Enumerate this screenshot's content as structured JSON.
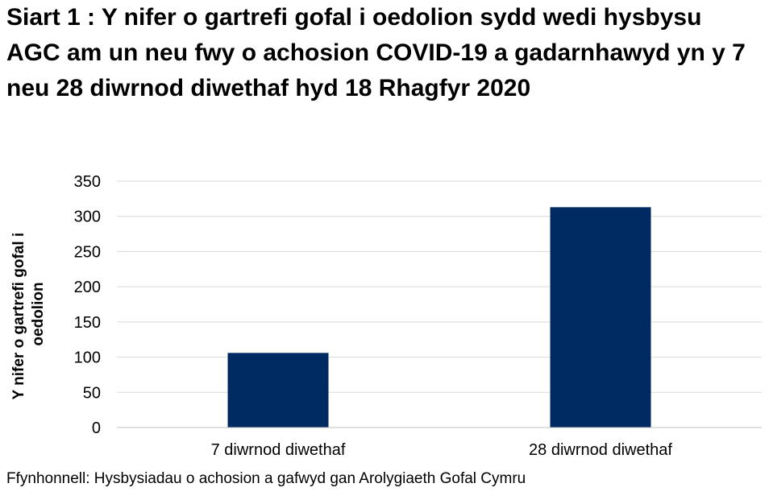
{
  "chart_data": {
    "type": "bar",
    "title": "Siart 1 : Y nifer o gartrefi gofal i oedolion sydd wedi hysbysu AGC am un neu fwy o achosion COVID-19 a gadarnhawyd yn y 7 neu 28 diwrnod diwethaf hyd 18 Rhagfyr 2020",
    "categories": [
      "7 diwrnod diwethaf",
      "28 diwrnod diwethaf"
    ],
    "values": [
      106,
      313
    ],
    "xlabel": "",
    "ylabel_lines": [
      "Y nifer o gartrefi gofal i",
      "oedolion"
    ],
    "ylim": [
      0,
      350
    ],
    "yticks": [
      0,
      50,
      100,
      150,
      200,
      250,
      300,
      350
    ],
    "grid": true,
    "legend": "none",
    "colors": {
      "bar": "#002a62",
      "grid": "#d9d9d9",
      "axis": "#bfbfbf"
    }
  },
  "source": "Ffynhonnell: Hysbysiadau o achosion a gafwyd gan Arolygiaeth Gofal Cymru"
}
